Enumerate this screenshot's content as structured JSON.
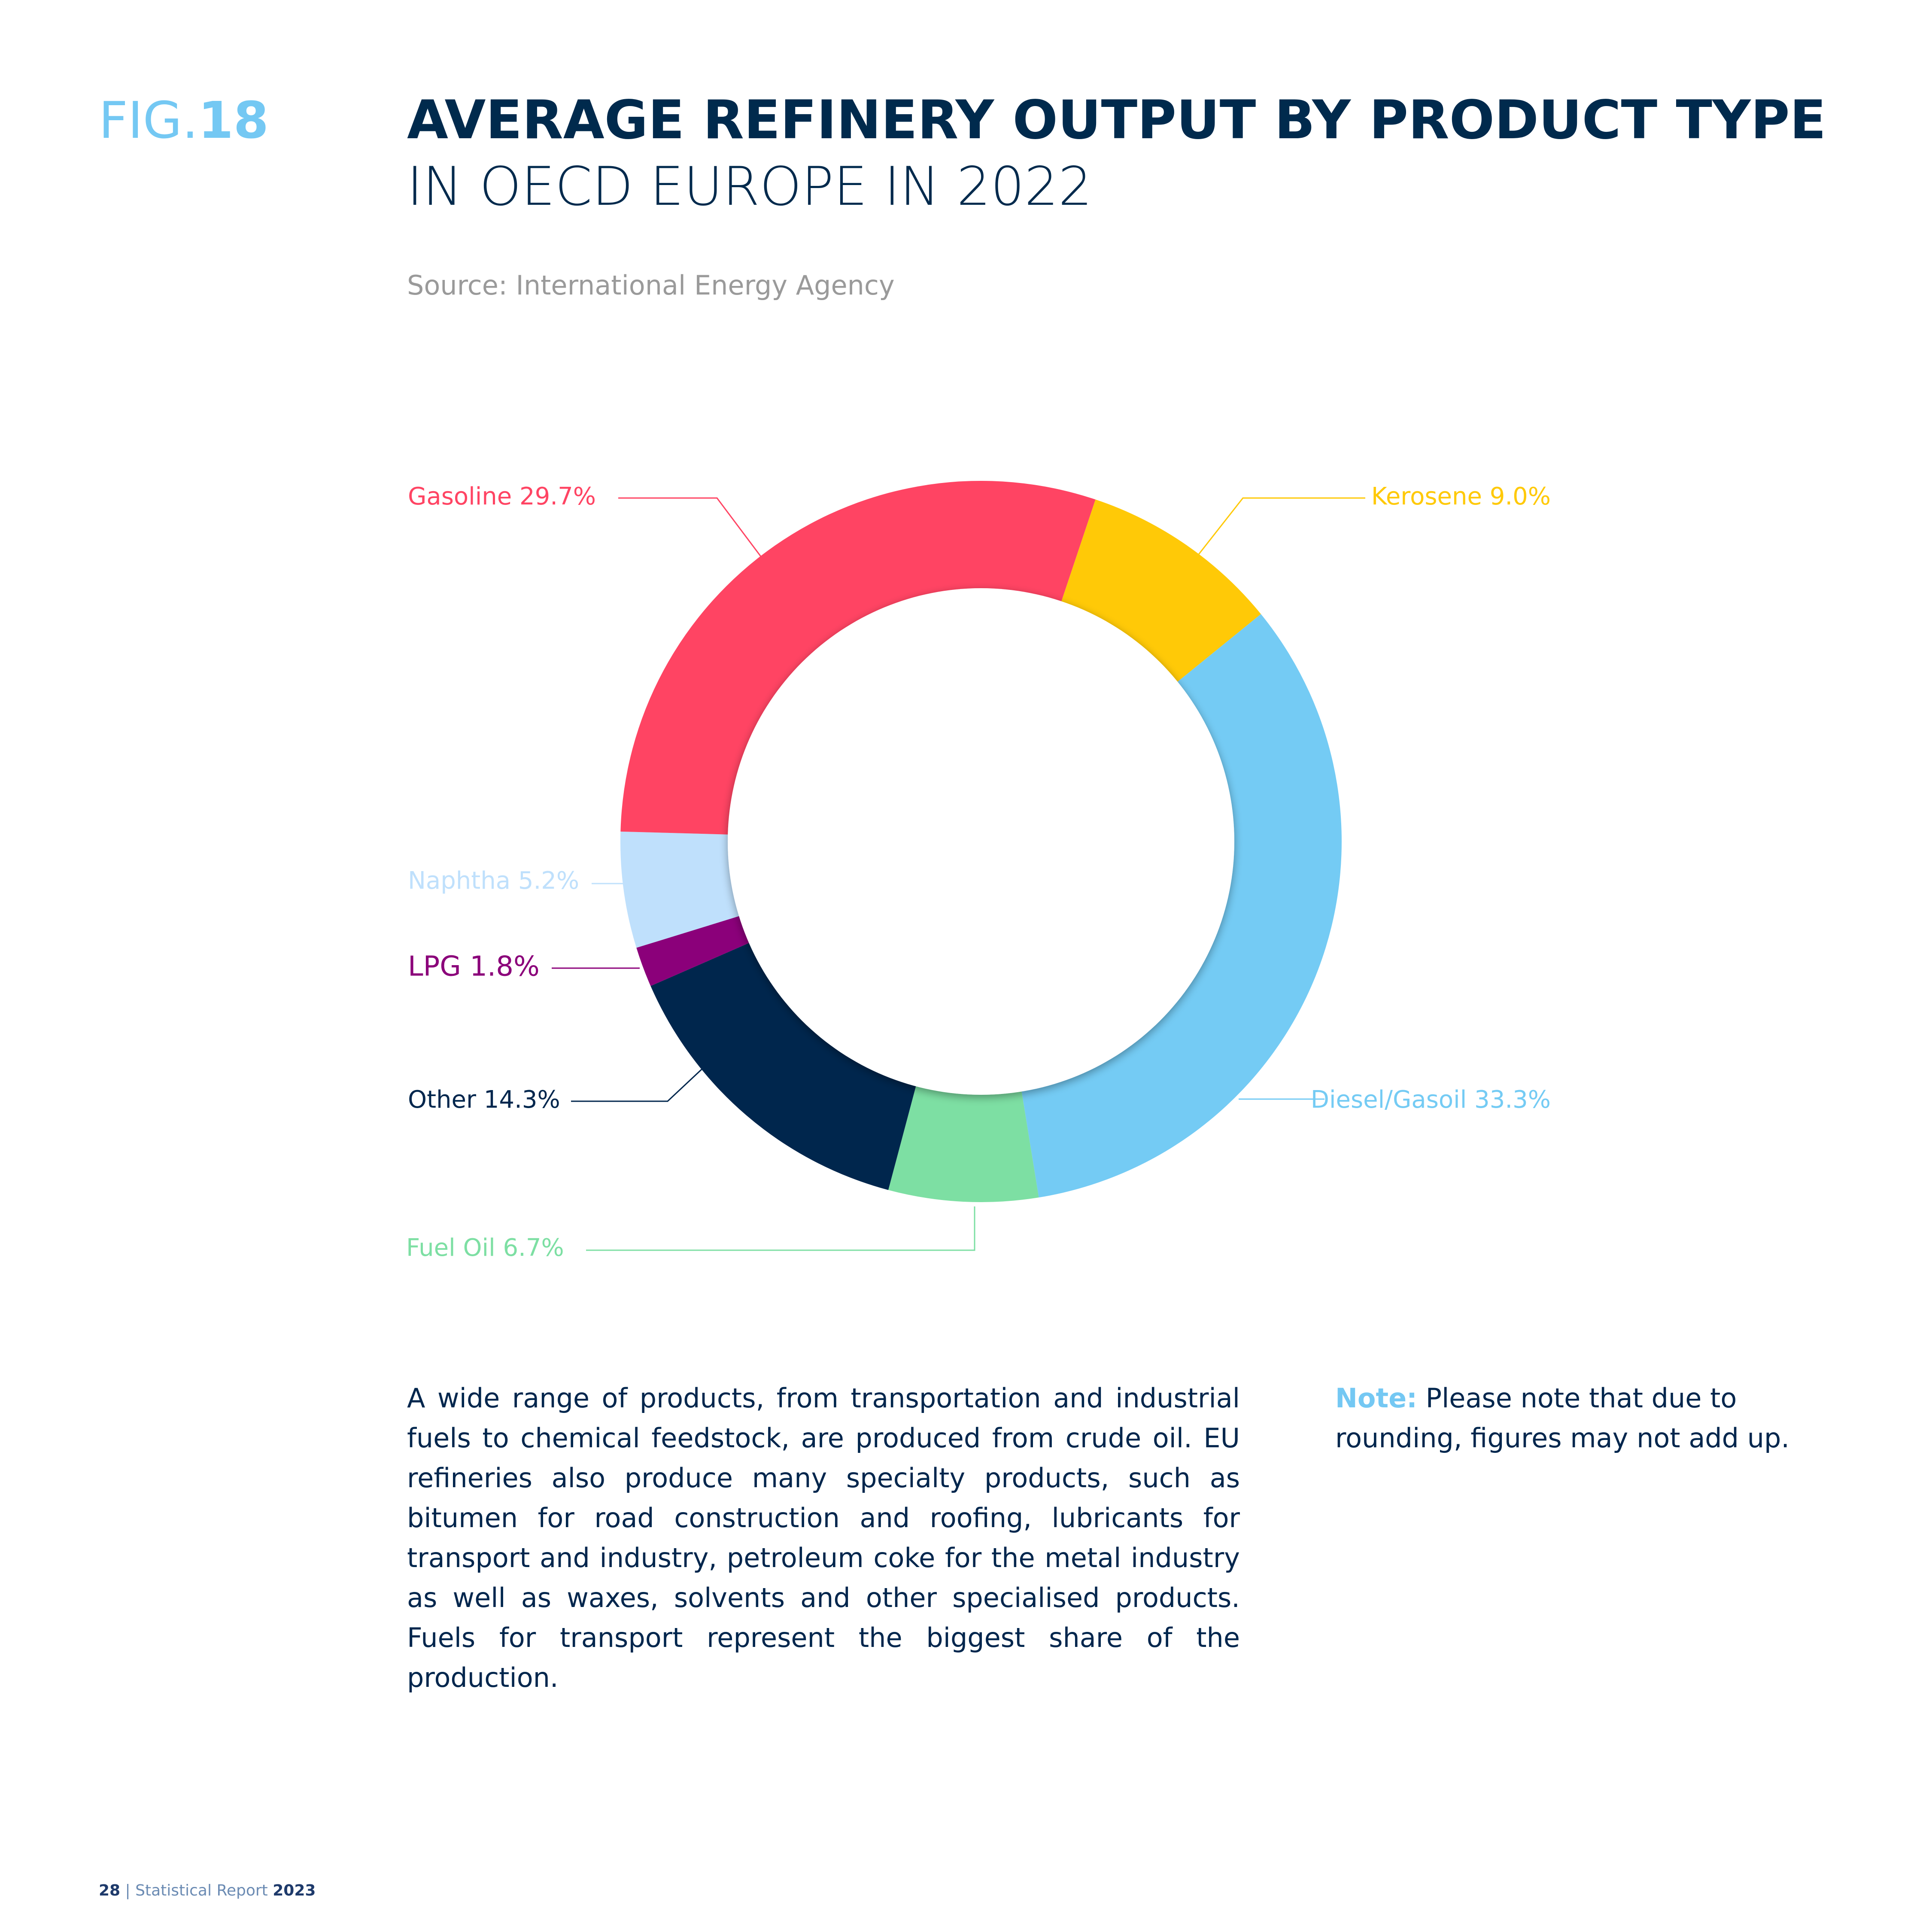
{
  "header": {
    "fig_prefix": "FIG.",
    "fig_number": "18",
    "title": "AVERAGE REFINERY OUTPUT BY PRODUCT TYPE",
    "subtitle": "IN OECD EUROPE IN 2022",
    "source": "Source: International Energy Agency"
  },
  "chart_data": {
    "type": "pie",
    "variant": "donut",
    "slices": [
      {
        "name": "Kerosene",
        "value": 9.0,
        "label": "Kerosene 9.0%",
        "color": "#ffc907"
      },
      {
        "name": "Diesel/Gasoil",
        "value": 33.3,
        "label": "Diesel/Gasoil 33.3%",
        "color": "#74cbf4"
      },
      {
        "name": "Fuel Oil",
        "value": 6.7,
        "label": "Fuel Oil 6.7%",
        "color": "#7ddfa3"
      },
      {
        "name": "Other",
        "value": 14.3,
        "label": "Other 14.3%",
        "color": "#00264d"
      },
      {
        "name": "LPG",
        "value": 1.8,
        "label": "LPG 1.8%",
        "color": "#8b007a"
      },
      {
        "name": "Naphtha",
        "value": 5.2,
        "label": "Naphtha 5.2%",
        "color": "#bfe0fc"
      },
      {
        "name": "Gasoline",
        "value": 29.7,
        "label": "Gasoline 29.7%",
        "color": "#ff4463"
      }
    ]
  },
  "body": {
    "text": "A wide range of products, from transportation and industrial fuels to chemical feedstock, are produced from crude oil. EU refineries also produce many specialty products, such as bitumen for road construction and roofing, lubricants for transport and industry, petroleum coke for the metal industry as well as waxes, solvents and other specialised products. Fuels for transport represent the biggest share of the production.",
    "note_label": "Note:",
    "note_text": " Please note that due to rounding, figures may not add up."
  },
  "footer": {
    "page": "28",
    "separator": " | ",
    "report": "Statistical Report ",
    "year": "2023"
  }
}
